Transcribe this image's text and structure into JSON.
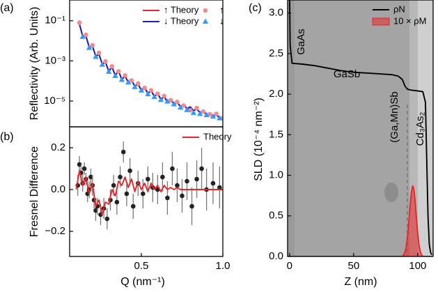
{
  "chart_data": [
    {
      "type": "line",
      "panel_label": "(a)",
      "ylabel": "Reflectivity (Arb. Units)",
      "yscale": "log",
      "xlim": [
        0.06,
        1.0
      ],
      "ylim": [
        5.2e-07,
        1.08
      ],
      "yticks": [
        {
          "value": 0.1,
          "label": "10⁻¹"
        },
        {
          "value": 0.001,
          "label": "10⁻³"
        },
        {
          "value": 1e-05,
          "label": "10⁻⁵"
        }
      ],
      "series": [
        {
          "name": "↑ Theory",
          "color": "#e8262a",
          "x": [
            0.12,
            0.14,
            0.16,
            0.18,
            0.2,
            0.22,
            0.24,
            0.26,
            0.28,
            0.3,
            0.32,
            0.34,
            0.36,
            0.38,
            0.4,
            0.42,
            0.44,
            0.46,
            0.48,
            0.5,
            0.52,
            0.54,
            0.56,
            0.58,
            0.6,
            0.62,
            0.64,
            0.66,
            0.68,
            0.7,
            0.72,
            0.74,
            0.76,
            0.78,
            0.8,
            0.82,
            0.84,
            0.86,
            0.88,
            0.9,
            0.92,
            0.94,
            0.96,
            0.98,
            1.0
          ],
          "values": [
            0.0708,
            0.0178,
            0.0178,
            0.00501,
            0.00562,
            0.00178,
            0.00224,
            0.000708,
            0.000891,
            0.000316,
            0.000501,
            0.0002,
            0.000316,
            0.000126,
            0.000178,
            8.91e-05,
            0.000112,
            5.62e-05,
            7.08e-05,
            3.55e-05,
            4.79e-05,
            2.51e-05,
            3.31e-05,
            1.78e-05,
            2.4e-05,
            1.26e-05,
            1.7e-05,
            9.12e-06,
            1.26e-05,
            7.24e-06,
            8.71e-06,
            5.5e-06,
            6.61e-06,
            4.27e-06,
            5.25e-06,
            3.39e-06,
            4.17e-06,
            2.69e-06,
            3.31e-06,
            2.14e-06,
            2.51e-06,
            1.82e-06,
            2.09e-06,
            1.51e-06,
            1.58e-06
          ]
        },
        {
          "name": "↓ Theory",
          "color": "#1a1ac0",
          "x": [
            0.12,
            0.14,
            0.16,
            0.18,
            0.2,
            0.22,
            0.24,
            0.26,
            0.28,
            0.3,
            0.32,
            0.34,
            0.36,
            0.38,
            0.4,
            0.42,
            0.44,
            0.46,
            0.48,
            0.5,
            0.52,
            0.54,
            0.56,
            0.58,
            0.6,
            0.62,
            0.64,
            0.66,
            0.68,
            0.7,
            0.72,
            0.74,
            0.76,
            0.78,
            0.8,
            0.82,
            0.84,
            0.86,
            0.88,
            0.9,
            0.92,
            0.94,
            0.96,
            0.98,
            1.0
          ],
          "values": [
            0.068,
            0.017,
            0.017,
            0.0048,
            0.0054,
            0.0017,
            0.0021,
            0.00068,
            0.00085,
            0.0003,
            0.00048,
            0.00019,
            0.0003,
            0.00012,
            0.00017,
            8.5e-05,
            0.000107,
            5.4e-05,
            6.8e-05,
            3.4e-05,
            4.6e-05,
            2.4e-05,
            3.2e-05,
            1.7e-05,
            2.3e-05,
            1.2e-05,
            1.63e-05,
            8.8e-06,
            1.2e-05,
            7e-06,
            8.4e-06,
            5.3e-06,
            6.4e-06,
            4.1e-06,
            5e-06,
            3.3e-06,
            4e-06,
            2.6e-06,
            3.2e-06,
            2.07e-06,
            2.42e-06,
            1.76e-06,
            2.02e-06,
            1.46e-06,
            1.52e-06
          ]
        },
        {
          "name": "↑",
          "color": "#f08c8c",
          "marker": "circle",
          "x": [
            0.12,
            0.16,
            0.2,
            0.24,
            0.28,
            0.32,
            0.36,
            0.4,
            0.44,
            0.48,
            0.52,
            0.56,
            0.6,
            0.64,
            0.68,
            0.72,
            0.76,
            0.8,
            0.84,
            0.88,
            0.92,
            0.96,
            1.0
          ],
          "values": [
            0.08,
            0.02,
            0.006,
            0.0025,
            0.00095,
            0.00053,
            0.0003,
            0.00019,
            0.000105,
            7.5e-05,
            4.5e-05,
            3.4e-05,
            2.3e-05,
            1.8e-05,
            1.1e-05,
            9e-06,
            6e-06,
            3.5e-06,
            4.5e-06,
            3e-06,
            2.2e-06,
            2.3e-06,
            1.4e-06
          ]
        },
        {
          "name": "↓",
          "color": "#3399ff",
          "marker": "triangle",
          "x": [
            0.14,
            0.18,
            0.22,
            0.26,
            0.3,
            0.34,
            0.38,
            0.42,
            0.46,
            0.5,
            0.54,
            0.58,
            0.62,
            0.66,
            0.7,
            0.74,
            0.78,
            0.82,
            0.86,
            0.9,
            0.94,
            0.98
          ],
          "values": [
            0.016,
            0.0045,
            0.0016,
            0.00065,
            0.00029,
            0.00018,
            0.000115,
            8.5e-05,
            5e-05,
            3.4e-05,
            2.2e-05,
            1.6e-05,
            1.15e-05,
            9.5e-06,
            7e-06,
            4.8e-06,
            3.6e-06,
            2.6e-06,
            2.3e-06,
            2e-06,
            1.7e-06,
            1.4e-06
          ]
        }
      ]
    },
    {
      "type": "line",
      "panel_label": "(b)",
      "ylabel": "Fresnel Difference",
      "xlabel": "Q  (nm⁻¹)",
      "xlim": [
        0.06,
        1.0
      ],
      "ylim": [
        -0.32,
        0.3
      ],
      "xticks": [
        0.5,
        {
          "value": 1.0,
          "label": "1.0"
        }
      ],
      "yticks": [
        {
          "value": -0.2,
          "label": "−0.2"
        },
        {
          "value": 0,
          "label": "0.0"
        },
        0.2
      ],
      "series": [
        {
          "color": "#222222",
          "marker": "circle",
          "x": [
            0.11,
            0.12,
            0.13,
            0.14,
            0.15,
            0.16,
            0.17,
            0.18,
            0.19,
            0.2,
            0.21,
            0.22,
            0.23,
            0.25,
            0.27,
            0.29,
            0.31,
            0.33,
            0.35,
            0.37,
            0.39,
            0.41,
            0.43,
            0.45,
            0.48,
            0.51,
            0.54,
            0.57,
            0.6,
            0.63,
            0.66,
            0.69,
            0.72,
            0.75,
            0.78,
            0.81,
            0.84,
            0.87,
            0.9,
            0.94,
            0.98
          ],
          "values": [
            0.02,
            0.12,
            0.08,
            0.03,
            0.1,
            0.05,
            -0.02,
            0.0,
            0.06,
            0.02,
            -0.05,
            -0.1,
            -0.08,
            -0.12,
            -0.09,
            -0.14,
            -0.05,
            0.02,
            -0.06,
            0.06,
            0.18,
            -0.02,
            0.09,
            -0.08,
            0.03,
            -0.02,
            0.05,
            0.01,
            0.0,
            0.06,
            -0.04,
            0.1,
            0.02,
            -0.03,
            0.04,
            -0.08,
            0.05,
            0.1,
            0.0,
            0.03,
            0.01
          ],
          "errors": [
            0.05,
            0.04,
            0.04,
            0.04,
            0.03,
            0.03,
            0.04,
            0.04,
            0.04,
            0.05,
            0.04,
            0.05,
            0.04,
            0.05,
            0.05,
            0.05,
            0.05,
            0.05,
            0.06,
            0.05,
            0.05,
            0.06,
            0.06,
            0.06,
            0.06,
            0.07,
            0.06,
            0.07,
            0.07,
            0.07,
            0.08,
            0.08,
            0.08,
            0.08,
            0.09,
            0.09,
            0.09,
            0.1,
            0.1,
            0.1,
            0.1
          ]
        },
        {
          "name": "Theory",
          "color": "#e8262a",
          "x": [
            0.1,
            0.12,
            0.14,
            0.16,
            0.18,
            0.2,
            0.22,
            0.24,
            0.26,
            0.28,
            0.3,
            0.32,
            0.34,
            0.36,
            0.38,
            0.4,
            0.42,
            0.44,
            0.46,
            0.48,
            0.5,
            0.52,
            0.54,
            0.56,
            0.58,
            0.6,
            0.62,
            0.64,
            0.66,
            0.68,
            0.7,
            0.72,
            0.74,
            0.76,
            0.78,
            0.8,
            0.82,
            0.84,
            0.86,
            0.88,
            0.9,
            0.92,
            0.94,
            0.96,
            0.98,
            1.0
          ],
          "values": [
            0,
            0.09,
            0.02,
            0.06,
            -0.02,
            0.03,
            -0.08,
            -0.05,
            -0.12,
            -0.06,
            -0.07,
            0,
            -0.03,
            0.04,
            0.02,
            0.06,
            0.01,
            0.05,
            -0.01,
            0.04,
            0,
            0.03,
            -0.01,
            0.03,
            0,
            0.02,
            -0.01,
            0.02,
            0,
            0.01,
            0,
            0.01,
            0,
            0,
            0,
            0,
            0,
            0,
            0,
            0,
            0,
            0,
            0,
            0,
            0,
            0
          ]
        }
      ]
    },
    {
      "type": "line",
      "panel_label": "(c)",
      "ylabel": "SLD (10⁻⁴ nm⁻²)",
      "xlabel": "Z (nm)",
      "xlim": [
        -1.5,
        112
      ],
      "ylim": [
        0,
        3.16
      ],
      "xticks": [
        0,
        50,
        100
      ],
      "yticks": [
        {
          "value": 0,
          "label": "0.0"
        },
        0.5,
        {
          "value": 1,
          "label": "1.0"
        },
        1.5,
        {
          "value": 2,
          "label": "2.0"
        },
        2.5,
        {
          "value": 3,
          "label": "3.0"
        }
      ],
      "annotations": [
        "GaAs",
        "GaSb",
        "(Ga,Mn)Sb",
        "Cd₃As₂"
      ],
      "series": [
        {
          "name": "ρN",
          "color": "#000000",
          "x": [
            0,
            0.5,
            2,
            10,
            20,
            30,
            40,
            50,
            60,
            70,
            80,
            85,
            88,
            90,
            92,
            95,
            100,
            104,
            106,
            107,
            108,
            109,
            110,
            111
          ],
          "values": [
            3.3,
            2.6,
            2.38,
            2.37,
            2.35,
            2.32,
            2.29,
            2.27,
            2.26,
            2.25,
            2.24,
            2.22,
            2.18,
            2.1,
            2.06,
            2.05,
            2.04,
            2.03,
            1.9,
            1.2,
            0.5,
            0.15,
            0.05,
            0.02
          ]
        },
        {
          "name": "10 × ρM",
          "color": "#e8262a",
          "fill": true,
          "x": [
            0,
            88,
            89,
            90,
            91,
            92,
            93,
            94,
            95,
            96,
            97,
            98,
            99,
            100,
            101,
            102,
            103,
            104,
            111
          ],
          "values": [
            0,
            0,
            0.02,
            0.05,
            0.12,
            0.24,
            0.42,
            0.62,
            0.79,
            0.87,
            0.83,
            0.68,
            0.47,
            0.28,
            0.14,
            0.06,
            0.02,
            0,
            0
          ]
        }
      ]
    }
  ]
}
